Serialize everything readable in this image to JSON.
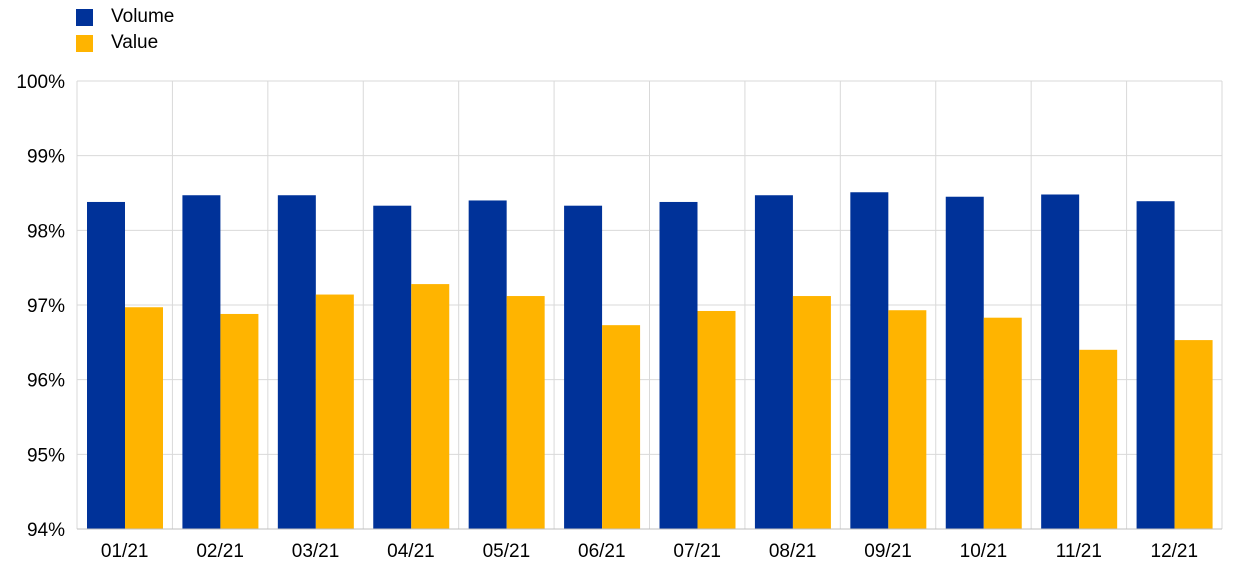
{
  "chart_data": {
    "type": "bar",
    "categories": [
      "01/21",
      "02/21",
      "03/21",
      "04/21",
      "05/21",
      "06/21",
      "07/21",
      "08/21",
      "09/21",
      "10/21",
      "11/21",
      "12/21"
    ],
    "series": [
      {
        "name": "Volume",
        "color": "#003299",
        "values": [
          98.38,
          98.47,
          98.47,
          98.33,
          98.4,
          98.33,
          98.38,
          98.47,
          98.51,
          98.45,
          98.48,
          98.39
        ]
      },
      {
        "name": "Value",
        "color": "#FFB400",
        "values": [
          96.97,
          96.88,
          97.14,
          97.28,
          97.12,
          96.73,
          96.92,
          97.12,
          96.93,
          96.83,
          96.4,
          96.53
        ]
      }
    ],
    "ylim": [
      94,
      100
    ],
    "yticks": [
      "94%",
      "95%",
      "96%",
      "97%",
      "98%",
      "99%",
      "100%"
    ],
    "grid": true,
    "legend": "top-left"
  }
}
